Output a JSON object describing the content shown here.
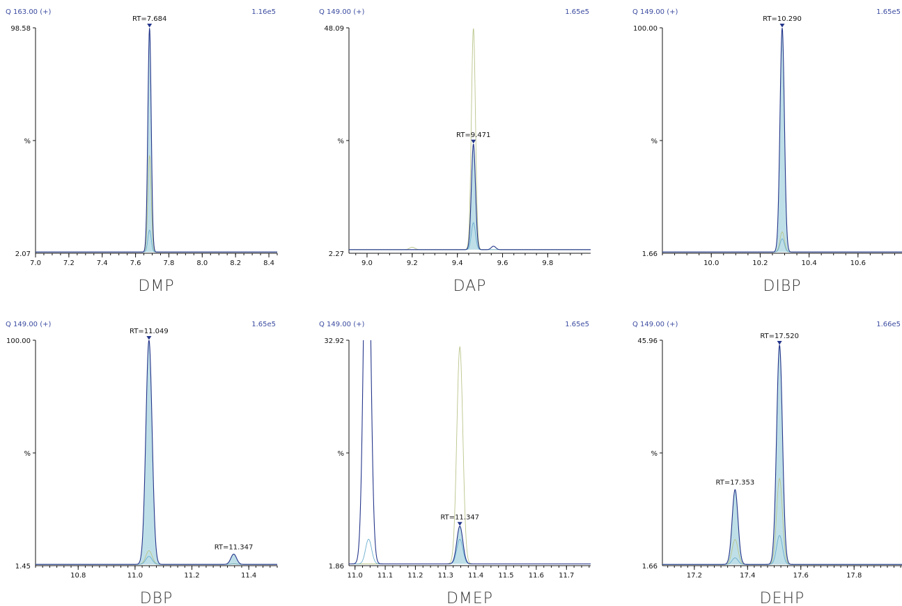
{
  "colors": {
    "quant": "#24358a",
    "ion2": "#b9c58a",
    "ion3": "#6aaed0",
    "fill": "#a9d4e0",
    "header": "#3b4ba0"
  },
  "chart_data": [
    {
      "type": "line",
      "name": "DMP",
      "channel": "Q 163.00 (+)",
      "intensity": "1.16e5",
      "ylim": [
        2.07,
        98.58
      ],
      "ytick_top": "98.58",
      "ytick_mid": "%",
      "ytick_bottom": "2.07",
      "xlim": [
        7.0,
        8.45
      ],
      "xticks": [
        "7.0",
        "7.2",
        "7.4",
        "7.6",
        "7.8",
        "8.0",
        "8.2",
        "8.4"
      ],
      "xminor": 0.05,
      "baseline": 2.6,
      "peaks": [
        {
          "label": "RT=7.684",
          "rt": 7.684,
          "marker": true,
          "width": 0.01,
          "heights": {
            "quant": 98.58,
            "ion2": 44.0,
            "ion3": 12.0
          }
        }
      ],
      "extra": []
    },
    {
      "type": "line",
      "name": "DAP",
      "channel": "Q 149.00 (+)",
      "intensity": "1.65e5",
      "ylim": [
        2.27,
        48.09
      ],
      "ytick_top": "48.09",
      "ytick_mid": "%",
      "ytick_bottom": "2.27",
      "xlim": [
        8.92,
        9.99
      ],
      "xticks": [
        "9.0",
        "9.2",
        "9.4",
        "9.6",
        "9.8"
      ],
      "xminor": 0.05,
      "baseline": 3.0,
      "peaks": [
        {
          "label": "RT=9.471",
          "rt": 9.471,
          "marker": true,
          "width": 0.009,
          "heights": {
            "quant": 24.5,
            "ion2": 48.0,
            "ion3": 8.5
          }
        }
      ],
      "extra": [
        {
          "series": "ion2",
          "rt": 9.2,
          "height": 3.5,
          "width": 0.012
        },
        {
          "series": "quant",
          "rt": 9.56,
          "height": 3.7,
          "width": 0.01
        }
      ]
    },
    {
      "type": "line",
      "name": "DIBP",
      "channel": "Q 149.00 (+)",
      "intensity": "1.65e5",
      "ylim": [
        1.66,
        100.0
      ],
      "ytick_top": "100.00",
      "ytick_mid": "%",
      "ytick_bottom": "1.66",
      "xlim": [
        9.8,
        10.78
      ],
      "xticks": [
        "10.0",
        "10.2",
        "10.4",
        "10.6"
      ],
      "xminor": 0.05,
      "baseline": 2.2,
      "peaks": [
        {
          "label": "RT=10.290",
          "rt": 10.29,
          "marker": true,
          "width": 0.009,
          "heights": {
            "quant": 100.0,
            "ion2": 11.0,
            "ion3": 8.0
          }
        }
      ],
      "extra": []
    },
    {
      "type": "line",
      "name": "DBP",
      "channel": "Q 149.00 (+)",
      "intensity": "1.65e5",
      "ylim": [
        1.45,
        100.0
      ],
      "ytick_top": "100.00",
      "ytick_mid": "%",
      "ytick_bottom": "1.45",
      "xlim": [
        10.65,
        11.5
      ],
      "xticks": [
        "10.8",
        "11.0",
        "11.2",
        "11.4"
      ],
      "xminor": 0.025,
      "baseline": 2.0,
      "peaks": [
        {
          "label": "RT=11.049",
          "rt": 11.049,
          "marker": true,
          "width": 0.011,
          "heights": {
            "quant": 100.0,
            "ion2": 8.0,
            "ion3": 5.5
          }
        },
        {
          "label": "RT=11.347",
          "rt": 11.347,
          "marker": false,
          "width": 0.01,
          "heights": {
            "quant": 6.5,
            "ion2": 2.3,
            "ion3": 2.2
          }
        }
      ],
      "extra": []
    },
    {
      "type": "line",
      "name": "DMEP",
      "channel": "Q 149.00 (+)",
      "intensity": "1.65e5",
      "ylim": [
        1.86,
        32.92
      ],
      "ytick_top": "32.92",
      "ytick_mid": "%",
      "ytick_bottom": "1.86",
      "xlim": [
        10.98,
        11.78
      ],
      "xticks": [
        "11.0",
        "11.1",
        "11.2",
        "11.3",
        "11.4",
        "11.5",
        "11.6",
        "11.7"
      ],
      "xminor": 0.025,
      "baseline": 2.1,
      "peaks": [
        {
          "label": "RT=11.347",
          "rt": 11.347,
          "marker": true,
          "width": 0.01,
          "heights": {
            "quant": 7.3,
            "ion2": 32.0,
            "ion3": 5.5
          }
        }
      ],
      "extra": [
        {
          "series": "quant",
          "rt": 11.04,
          "height": 60.0,
          "width": 0.011
        },
        {
          "series": "ion3",
          "rt": 11.045,
          "height": 5.5,
          "width": 0.01
        }
      ]
    },
    {
      "type": "line",
      "name": "DEHP",
      "channel": "Q 149.00 (+)",
      "intensity": "1.66e5",
      "ylim": [
        1.66,
        45.96
      ],
      "ytick_top": "45.96",
      "ytick_mid": "%",
      "ytick_bottom": "1.66",
      "xlim": [
        17.08,
        17.98
      ],
      "xticks": [
        "17.2",
        "17.4",
        "17.6",
        "17.8"
      ],
      "xminor": 0.025,
      "baseline": 1.9,
      "peaks": [
        {
          "label": "RT=17.353",
          "rt": 17.353,
          "marker": false,
          "width": 0.011,
          "heights": {
            "quant": 16.6,
            "ion2": 6.8,
            "ion3": 3.2
          }
        },
        {
          "label": "RT=17.520",
          "rt": 17.52,
          "marker": true,
          "width": 0.011,
          "heights": {
            "quant": 45.0,
            "ion2": 18.8,
            "ion3": 7.6
          }
        }
      ],
      "extra": []
    }
  ]
}
